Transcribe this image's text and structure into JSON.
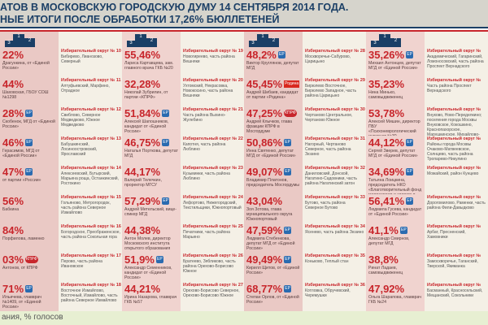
{
  "header": {
    "title_line1": "АТОВ В МОСКОВСКУЮ ГОРОДСКУЮ ДУМУ 14 СЕНТЯБРЯ 2014 ГОДА.",
    "title_line2": "НЫЕ ИТОГИ ПОСЛЕ ОБРАБОТКИ 17,26% БЮЛЛЕТЕНЕЙ"
  },
  "footer": {
    "legend": "ания, % голосов"
  },
  "podium": {
    "first": "1",
    "second": "2",
    "third": "3"
  },
  "columns": [
    {
      "results": [
        {
          "pct": "22%",
          "who": "Драгункина, от «Единой России»",
          "party": ""
        },
        {
          "pct": "44%",
          "who": "Шаховская, ГБОУ СОШ №1298",
          "party": ""
        },
        {
          "pct": "28%",
          "who": "Скобенок, МГД от «Единой России»",
          "party": "ЕР"
        },
        {
          "pct": "46%",
          "who": "Герасимов, МГД от «Единой России»",
          "party": "ЕР"
        },
        {
          "pct": "47%",
          "who": "от партии «России»",
          "party": "ЕР"
        },
        {
          "pct": "56%",
          "who": "Бабкина",
          "party": ""
        },
        {
          "pct": "84%",
          "who": "Порфилова, ламенко",
          "party": ""
        },
        {
          "pct": "03%",
          "who": "Антонов, от КПРФ",
          "party": "КПРФ"
        },
        {
          "pct": "71%",
          "who": "Ильичева, главврач №1409, от «Единой России»",
          "party": "ЕР"
        }
      ],
      "districts": [
        {
          "title": "Избирательный округ № 10",
          "text": "Бибирево, Лианозово, Северный"
        },
        {
          "title": "Избирательный округ № 11",
          "text": "Алтуфьевский, Марфино, Отрадное"
        },
        {
          "title": "Избирательный округ № 12",
          "text": "Свиблово, Северное Медведково, Южное Медведково"
        },
        {
          "title": "Избирательный округ № 13",
          "text": "Бабушкинский, Лосиноостровский, Ярославский"
        },
        {
          "title": "Избирательный округ № 14",
          "text": "Алексеевский, Бутырский, Марьина роща, Останкинский, Ростокино"
        },
        {
          "title": "Избирательный округ № 15",
          "text": "Гольяново, Метрогородок, часть района Северное Измайлово"
        },
        {
          "title": "Избирательный округ № 16",
          "text": "Богородское, Преображенское, часть района Сокольная гора"
        },
        {
          "title": "Избирательный округ № 17",
          "text": "Перово, часть района Ивановское"
        },
        {
          "title": "Избирательный округ № 18",
          "text": "Восточное Измайлово, Восточный, Измайлово, часть района Северное Измайлово"
        }
      ]
    },
    {
      "results": [
        {
          "pct": "55,46%",
          "who": "Лариса Картавцева, зам. главного врача ГКБ №20",
          "party": ""
        },
        {
          "pct": "32,28%",
          "who": "Николай Зубрилин, от партии «КПРФ»",
          "party": ""
        },
        {
          "pct": "51,84%",
          "who": "Алексей Шапошников, кандидат от «Единой России»",
          "party": "ЕР"
        },
        {
          "pct": "46,75%",
          "who": "Наталья Порткова, депутат МГД",
          "party": "ЕР"
        },
        {
          "pct": "44,17%",
          "who": "Валерий Телечкин, проректор МГСУ",
          "party": ""
        },
        {
          "pct": "57,29%",
          "who": "Андрей Метельский, вице-спикер МГД",
          "party": "ЕР"
        },
        {
          "pct": "44,38%",
          "who": "Антон Молев, директор Московского института открытого образования",
          "party": ""
        },
        {
          "pct": "51,9%",
          "who": "Александр Семенников, кандидат от «Единой России»",
          "party": "ЕР"
        },
        {
          "pct": "44,21%",
          "who": "Ирина Назарова, главврач ГКБ №57",
          "party": ""
        }
      ],
      "districts": [
        {
          "title": "Избирательный округ № 19",
          "text": "Новогиреево, часть района Вешняки"
        },
        {
          "title": "Избирательный округ № 20",
          "text": "Ухтомский, Некрасовка, Новокосино, часть района Вешняки"
        },
        {
          "title": "Избирательный округ № 21",
          "text": "Часть района Выхино-Жулебино"
        },
        {
          "title": "Избирательный округ № 22",
          "text": "Капотня, часть района Люблино"
        },
        {
          "title": "Избирательный округ № 23",
          "text": "Кузьминки, часть района Люблино"
        },
        {
          "title": "Избирательный округ № 24",
          "text": "Лефортово, Нижегородский, Текстильщики, Южнопортовый"
        },
        {
          "title": "Избирательный округ № 25",
          "text": "Печатники, часть района Марьино"
        },
        {
          "title": "Избирательный округ № 26",
          "text": "Братеево, Зябликово, часть района Орехово-Борисово Южное"
        },
        {
          "title": "Избирательный округ № 27",
          "text": "Орехово-Борисово Северное, Орехово-Борисово Южное"
        }
      ]
    },
    {
      "results": [
        {
          "pct": "48,2%",
          "who": "Виктор Круглянов, депутат МГД",
          "party": "ЕР"
        },
        {
          "pct": "45,45%",
          "who": "Андрей Шибаев, кандидат от партии «Родина»",
          "party": "Родина"
        },
        {
          "pct": "47,25%",
          "who": "Андрей Клычков, глава фракции КПРФ в Мосгордуме",
          "party": "КПРФ"
        },
        {
          "pct": "50,86%",
          "who": "Инна Святенко, депутат МГД от «Единой России»",
          "party": "ЕР"
        },
        {
          "pct": "49,07%",
          "who": "Владимир Платонов, председатель Мосгордумы",
          "party": "ЕР"
        },
        {
          "pct": "43,04%",
          "who": "Зоя Зотова, глава муниципального округа Южнопортовый",
          "party": ""
        },
        {
          "pct": "47,59%",
          "who": "Людмила Стебенкова, депутат МГД от «Единой России»",
          "party": "ЕР"
        },
        {
          "pct": "49,49%",
          "who": "Кирилл Щитов, от «Единой России»",
          "party": "ЕР"
        },
        {
          "pct": "68,77%",
          "who": "Степан Орлов, от «Единой России»",
          "party": "ЕР"
        }
      ],
      "districts": [
        {
          "title": "Избирательный округ № 28",
          "text": "Москворечье-Сабурово, Царицыно"
        },
        {
          "title": "Избирательный округ № 29",
          "text": "Бирюлево Восточное, Бирюлево Западное, часть района Царицыно"
        },
        {
          "title": "Избирательный округ № 30",
          "text": "Чертаново Центральное, Чертаново Южное"
        },
        {
          "title": "Избирательный округ № 31",
          "text": "Нагорный, Чертаново Северное, часть района Зюзино"
        },
        {
          "title": "Избирательный округ № 32",
          "text": "Даниловский, Донской, Нагатино-Садовники, часть района Нагатинский затон"
        },
        {
          "title": "Избирательный округ № 33",
          "text": "Бутово, часть района Северное Бутово"
        },
        {
          "title": "Избирательный округ № 34",
          "text": "Ясенево, часть района Зюзино"
        },
        {
          "title": "Избирательный округ № 35",
          "text": "Коньково, Теплый стан"
        },
        {
          "title": "Избирательный округ № 36",
          "text": "Котловка, Обручевский, Черемушки"
        }
      ]
    },
    {
      "results": [
        {
          "pct": "35,26%",
          "who": "Михаил Антонцев, депутат МГД от «Единой России»",
          "party": "ЕР"
        },
        {
          "pct": "35,23%",
          "who": "Нина Минько, самовыдвиженец",
          "party": ""
        },
        {
          "pct": "53,78%",
          "who": "Алексей Мишин, директор ПБУ «Психоневрологический интернат №30 департамента социальной защиты населения Москвы»",
          "party": ""
        },
        {
          "pct": "44,12%",
          "who": "Сергей Зверев, депутат МГД от «Единой России»",
          "party": "ЕР"
        },
        {
          "pct": "34,69%",
          "who": "Татьяна Лоицкина, председатель НКО «Благотворительный фонд милосердия и здоровья «Зеленая», кандидат от «Единой России»",
          "party": "ЕР"
        },
        {
          "pct": "56,41%",
          "who": "Людмила Гусева, кандидат от «Единой России»",
          "party": "ЕР"
        },
        {
          "pct": "41,1%",
          "who": "Александр Смирнов, депутат МГД",
          "party": "ЕР"
        },
        {
          "pct": "38,8%",
          "who": "Ринат Ладаев, самовыдвиженец",
          "party": ""
        },
        {
          "pct": "47,92%",
          "who": "Ольга Шарапова, главврач ГКБ №24",
          "party": ""
        }
      ],
      "districts": [
        {
          "title": "Избирательный округ №",
          "text": "Академический, Гагаринский, Ломоносовский, часть района Проспект Вернадского"
        },
        {
          "title": "Избирательный округ №",
          "text": "Часть района Проспект Вернадского"
        },
        {
          "title": "Избирательный округ №",
          "text": "Внуково, Ново-Переделкино; поселения города Москвы Внуковское, Кокошкино, Краснопахорское, Марушкинское, Михайлово-Ярцевское, Новофедоровское, Первомайское, Троицк"
        },
        {
          "title": "Избирательный округ №",
          "text": "Районы города Москвы Очаково-Матвеевское, Солнцево, часть района Тропарево-Никулино"
        },
        {
          "title": "Избирательный округ №",
          "text": "Можайский, район Кунцево"
        },
        {
          "title": "Избирательный округ №",
          "text": "Дорогомилово, Раменки, часть района Фили-Давыдково"
        },
        {
          "title": "Избирательный округ №",
          "text": "Арбат, Пресненский, Хамовники"
        },
        {
          "title": "Избирательный округ №",
          "text": "Замоскворечье, Таганский, Тверской, Якиманка"
        },
        {
          "title": "Избирательный округ №",
          "text": "Басманный, Красносельский, Мещанский, Сокольники"
        }
      ]
    }
  ]
}
